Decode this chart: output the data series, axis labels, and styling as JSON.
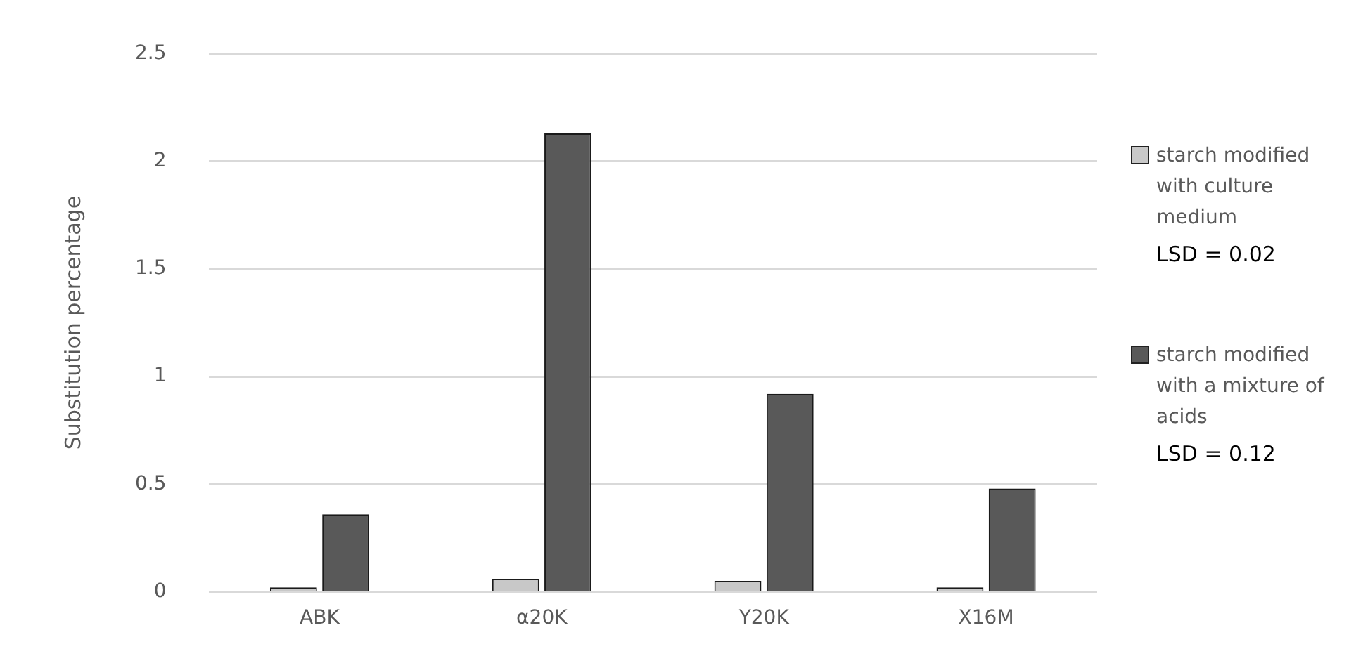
{
  "chart_data": {
    "type": "bar",
    "ylabel": "Substitution percentage",
    "categories": [
      "ABK",
      "α20K",
      "Y20K",
      "X16M"
    ],
    "series": [
      {
        "name": "starch modified with culture medium",
        "color": "#c8c8c8",
        "values": [
          0.02,
          0.06,
          0.05,
          0.02
        ]
      },
      {
        "name": "starch modified with a mixture of acids",
        "color": "#595959",
        "values": [
          0.36,
          2.13,
          0.92,
          0.48
        ]
      }
    ],
    "annotations": [
      "LSD = 0.02",
      "LSD = 0.12"
    ],
    "ylim": [
      0,
      2.5
    ],
    "yticks": [
      0,
      0.5,
      1,
      1.5,
      2,
      2.5
    ],
    "grid": "y",
    "legend": "right"
  }
}
